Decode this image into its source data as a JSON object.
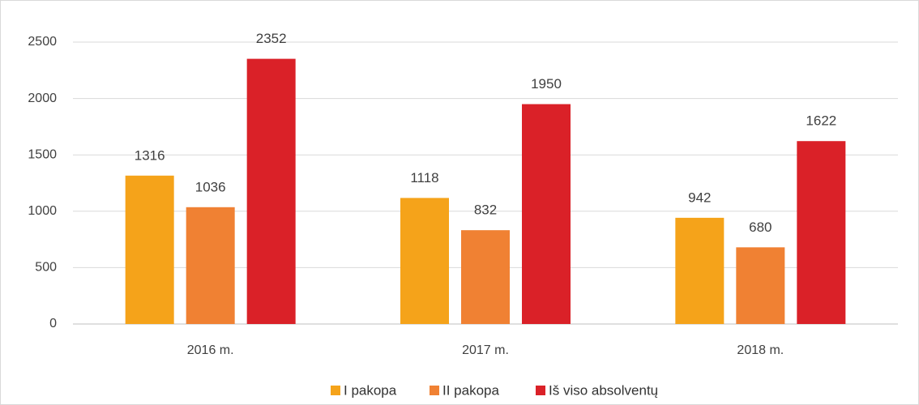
{
  "chart_data": {
    "type": "bar",
    "categories": [
      "2016 m.",
      "2017 m.",
      "2018 m."
    ],
    "series": [
      {
        "name": "I pakopa",
        "color": "#f5a31a",
        "values": [
          1316,
          1118,
          942
        ]
      },
      {
        "name": "II pakopa",
        "color": "#f08133",
        "values": [
          1036,
          832,
          680
        ]
      },
      {
        "name": "Iš viso absolventų",
        "color": "#da2128",
        "values": [
          2352,
          1950,
          1622
        ]
      }
    ],
    "ylim": [
      0,
      2500
    ],
    "yticks": [
      0,
      500,
      1000,
      1500,
      2000,
      2500
    ],
    "grid": true,
    "legend": "bottom"
  }
}
